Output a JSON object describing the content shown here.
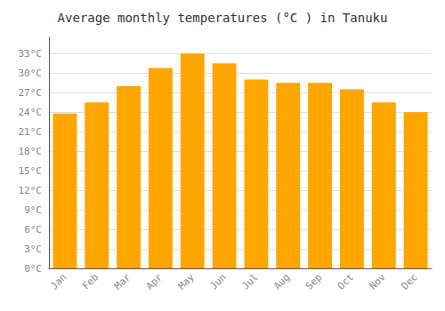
{
  "chart_data": {
    "type": "bar",
    "title": "Average monthly temperatures (°C ) in Tanuku",
    "categories": [
      "Jan",
      "Feb",
      "Mar",
      "Apr",
      "May",
      "Jun",
      "Jul",
      "Aug",
      "Sep",
      "Oct",
      "Nov",
      "Dec"
    ],
    "values": [
      23.8,
      25.5,
      28.0,
      30.8,
      33.0,
      31.5,
      29.0,
      28.5,
      28.5,
      27.5,
      25.5,
      24.0
    ],
    "color": "#FFA500",
    "ylim": [
      0,
      35.5
    ],
    "yticks": [
      {
        "value": 0,
        "label": "0°C"
      },
      {
        "value": 3,
        "label": "3°C"
      },
      {
        "value": 6,
        "label": "6°C"
      },
      {
        "value": 9,
        "label": "9°C"
      },
      {
        "value": 12,
        "label": "12°C"
      },
      {
        "value": 15,
        "label": "15°C"
      },
      {
        "value": 18,
        "label": "18°C"
      },
      {
        "value": 21,
        "label": "21°C"
      },
      {
        "value": 24,
        "label": "24°C"
      },
      {
        "value": 27,
        "label": "27°C"
      },
      {
        "value": 30,
        "label": "30°C"
      },
      {
        "value": 33,
        "label": "33°C"
      }
    ],
    "grid": true
  }
}
